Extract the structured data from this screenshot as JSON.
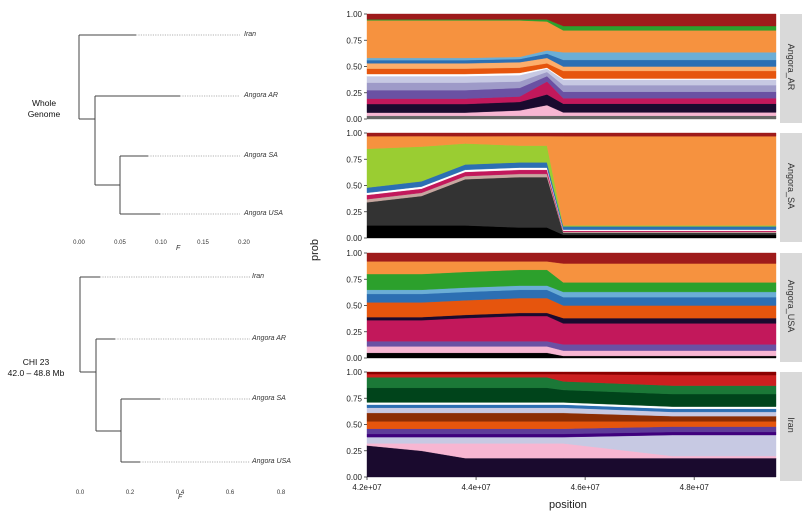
{
  "trees": [
    {
      "label_lines": [
        "Whole",
        "Genome"
      ],
      "taxa": [
        "Iran",
        "Angora AR",
        "Angora SA",
        "Angora USA"
      ],
      "axis_ticks": [
        "0.00",
        "0.05",
        "0.10",
        "0.15",
        "0.20"
      ],
      "axis_title": "F"
    },
    {
      "label_lines": [
        "CHI 23",
        "42.0 – 48.8 Mb"
      ],
      "taxa": [
        "Iran",
        "Angora AR",
        "Angora SA",
        "Angora USA"
      ],
      "axis_ticks": [
        "0.0",
        "0.2",
        "0.4",
        "0.6",
        "0.8"
      ],
      "axis_title": "F"
    }
  ],
  "chart_data": {
    "type": "area",
    "title": "",
    "xlabel": "position",
    "ylabel": "prob",
    "x_ticks": [
      "4.2e+07",
      "4.4e+07",
      "4.6e+07",
      "4.8e+07"
    ],
    "x_tick_values": [
      42000000,
      44000000,
      46000000,
      48000000
    ],
    "xlim": [
      42000000,
      49500000
    ],
    "y_ticks": [
      "1.00",
      "0.75",
      "0.50",
      "0.25",
      "0.00"
    ],
    "ylim": [
      0,
      1
    ],
    "facets": [
      {
        "name": "Angora_AR",
        "series": [
          {
            "color": "#666666",
            "values": [
              0.03,
              0.03,
              0.03,
              0.03,
              0.03,
              0.03,
              0.03,
              0.03
            ]
          },
          {
            "color": "#f7b6d2",
            "values": [
              0.03,
              0.03,
              0.03,
              0.05,
              0.1,
              0.03,
              0.03,
              0.03
            ]
          },
          {
            "color": "#1a0a2e",
            "values": [
              0.08,
              0.08,
              0.08,
              0.08,
              0.1,
              0.08,
              0.08,
              0.08
            ]
          },
          {
            "color": "#c2185b",
            "values": [
              0.05,
              0.05,
              0.05,
              0.05,
              0.12,
              0.05,
              0.05,
              0.05
            ]
          },
          {
            "color": "#6a51a3",
            "values": [
              0.08,
              0.08,
              0.08,
              0.08,
              0.05,
              0.06,
              0.06,
              0.06
            ]
          },
          {
            "color": "#9e9ac8",
            "values": [
              0.07,
              0.07,
              0.07,
              0.06,
              0.04,
              0.06,
              0.06,
              0.06
            ]
          },
          {
            "color": "#c7c9e3",
            "values": [
              0.06,
              0.06,
              0.06,
              0.06,
              0.03,
              0.05,
              0.05,
              0.05
            ]
          },
          {
            "color": "#ffffff",
            "values": [
              0.02,
              0.02,
              0.02,
              0.02,
              0.01,
              0.01,
              0.01,
              0.01
            ]
          },
          {
            "color": "#e6550d",
            "values": [
              0.05,
              0.05,
              0.05,
              0.05,
              0.04,
              0.07,
              0.07,
              0.07
            ]
          },
          {
            "color": "#fdae6b",
            "values": [
              0.05,
              0.05,
              0.05,
              0.05,
              0.05,
              0.04,
              0.04,
              0.04
            ]
          },
          {
            "color": "#2c6fb3",
            "values": [
              0.03,
              0.03,
              0.03,
              0.03,
              0.04,
              0.06,
              0.06,
              0.06
            ]
          },
          {
            "color": "#6baed6",
            "values": [
              0.02,
              0.02,
              0.02,
              0.02,
              0.03,
              0.07,
              0.07,
              0.07
            ]
          },
          {
            "color": "#f6923f",
            "values": [
              0.35,
              0.35,
              0.35,
              0.34,
              0.27,
              0.2,
              0.2,
              0.2
            ]
          },
          {
            "color": "#2ca02c",
            "values": [
              0.01,
              0.01,
              0.01,
              0.01,
              0.02,
              0.04,
              0.04,
              0.04
            ]
          },
          {
            "color": "#9e1b1b",
            "values": [
              0.05,
              0.05,
              0.05,
              0.05,
              0.05,
              0.11,
              0.11,
              0.11
            ]
          }
        ]
      },
      {
        "name": "Angora_SA",
        "series": [
          {
            "color": "#000000",
            "values": [
              0.12,
              0.12,
              0.12,
              0.1,
              0.1,
              0.03,
              0.03,
              0.03
            ]
          },
          {
            "color": "#333333",
            "values": [
              0.22,
              0.28,
              0.44,
              0.48,
              0.48,
              0.02,
              0.02,
              0.02
            ]
          },
          {
            "color": "#c7a7a0",
            "values": [
              0.03,
              0.03,
              0.03,
              0.03,
              0.03,
              0.01,
              0.01,
              0.01
            ]
          },
          {
            "color": "#c2185b",
            "values": [
              0.04,
              0.04,
              0.04,
              0.04,
              0.04,
              0.01,
              0.01,
              0.01
            ]
          },
          {
            "color": "#ffffff",
            "values": [
              0.02,
              0.02,
              0.02,
              0.02,
              0.02,
              0.01,
              0.01,
              0.01
            ]
          },
          {
            "color": "#2c6fb3",
            "values": [
              0.05,
              0.05,
              0.05,
              0.05,
              0.05,
              0.03,
              0.03,
              0.03
            ]
          },
          {
            "color": "#9acd32",
            "values": [
              0.37,
              0.33,
              0.2,
              0.16,
              0.16,
              0.01,
              0.01,
              0.01
            ]
          },
          {
            "color": "#f6923f",
            "values": [
              0.12,
              0.1,
              0.07,
              0.09,
              0.09,
              0.85,
              0.85,
              0.85
            ]
          },
          {
            "color": "#9e1b1b",
            "values": [
              0.03,
              0.03,
              0.03,
              0.03,
              0.03,
              0.03,
              0.03,
              0.03
            ]
          }
        ]
      },
      {
        "name": "Angora_USA",
        "series": [
          {
            "color": "#000000",
            "values": [
              0.05,
              0.05,
              0.05,
              0.05,
              0.05,
              0.02,
              0.02,
              0.02
            ]
          },
          {
            "color": "#f7b6d2",
            "values": [
              0.06,
              0.06,
              0.06,
              0.06,
              0.06,
              0.05,
              0.05,
              0.05
            ]
          },
          {
            "color": "#6a51a3",
            "values": [
              0.05,
              0.05,
              0.05,
              0.05,
              0.05,
              0.06,
              0.06,
              0.06
            ]
          },
          {
            "color": "#c2185b",
            "values": [
              0.2,
              0.2,
              0.22,
              0.24,
              0.24,
              0.2,
              0.2,
              0.2
            ]
          },
          {
            "color": "#1a0a2e",
            "values": [
              0.03,
              0.03,
              0.03,
              0.03,
              0.03,
              0.05,
              0.05,
              0.05
            ]
          },
          {
            "color": "#e6550d",
            "values": [
              0.14,
              0.14,
              0.14,
              0.14,
              0.14,
              0.12,
              0.12,
              0.12
            ]
          },
          {
            "color": "#2c6fb3",
            "values": [
              0.08,
              0.08,
              0.08,
              0.08,
              0.08,
              0.08,
              0.08,
              0.08
            ]
          },
          {
            "color": "#6baed6",
            "values": [
              0.04,
              0.04,
              0.04,
              0.04,
              0.04,
              0.05,
              0.05,
              0.05
            ]
          },
          {
            "color": "#2ca02c",
            "values": [
              0.15,
              0.15,
              0.15,
              0.15,
              0.15,
              0.09,
              0.09,
              0.09
            ]
          },
          {
            "color": "#f6923f",
            "values": [
              0.12,
              0.12,
              0.1,
              0.08,
              0.08,
              0.18,
              0.18,
              0.18
            ]
          },
          {
            "color": "#9e1b1b",
            "values": [
              0.08,
              0.08,
              0.08,
              0.08,
              0.08,
              0.1,
              0.1,
              0.1
            ]
          }
        ]
      },
      {
        "name": "Iran",
        "series": [
          {
            "color": "#1a0a2e",
            "values": [
              0.3,
              0.25,
              0.18,
              0.18,
              0.18,
              0.18,
              0.18,
              0.18
            ]
          },
          {
            "color": "#f7b6d2",
            "values": [
              0.02,
              0.07,
              0.14,
              0.14,
              0.14,
              0.14,
              0.02,
              0.02
            ]
          },
          {
            "color": "#c7c9e3",
            "values": [
              0.06,
              0.06,
              0.06,
              0.06,
              0.06,
              0.06,
              0.2,
              0.2
            ]
          },
          {
            "color": "#3f007d",
            "values": [
              0.03,
              0.03,
              0.03,
              0.03,
              0.03,
              0.03,
              0.03,
              0.03
            ]
          },
          {
            "color": "#5e3c99",
            "values": [
              0.05,
              0.05,
              0.05,
              0.05,
              0.05,
              0.05,
              0.05,
              0.05
            ]
          },
          {
            "color": "#e6550d",
            "values": [
              0.07,
              0.07,
              0.07,
              0.07,
              0.07,
              0.07,
              0.05,
              0.05
            ]
          },
          {
            "color": "#8c2d04",
            "values": [
              0.08,
              0.08,
              0.08,
              0.08,
              0.08,
              0.08,
              0.05,
              0.05
            ]
          },
          {
            "color": "#c7c9e3",
            "values": [
              0.05,
              0.05,
              0.05,
              0.05,
              0.05,
              0.05,
              0.04,
              0.04
            ]
          },
          {
            "color": "#2c6fb3",
            "values": [
              0.03,
              0.03,
              0.03,
              0.03,
              0.03,
              0.03,
              0.03,
              0.03
            ]
          },
          {
            "color": "#ffffff",
            "values": [
              0.02,
              0.02,
              0.02,
              0.02,
              0.02,
              0.02,
              0.02,
              0.02
            ]
          },
          {
            "color": "#00441b",
            "values": [
              0.14,
              0.14,
              0.14,
              0.14,
              0.14,
              0.12,
              0.12,
              0.12
            ]
          },
          {
            "color": "#1b7837",
            "values": [
              0.1,
              0.1,
              0.1,
              0.1,
              0.1,
              0.08,
              0.08,
              0.08
            ]
          },
          {
            "color": "#cc1f1f",
            "values": [
              0.03,
              0.03,
              0.03,
              0.03,
              0.03,
              0.07,
              0.1,
              0.1
            ]
          },
          {
            "color": "#8b0000",
            "values": [
              0.02,
              0.02,
              0.02,
              0.02,
              0.02,
              0.02,
              0.03,
              0.03
            ]
          }
        ]
      }
    ],
    "x_positions": [
      42000000,
      43000000,
      43800000,
      44800000,
      45300000,
      45600000,
      47600000,
      49500000
    ]
  }
}
